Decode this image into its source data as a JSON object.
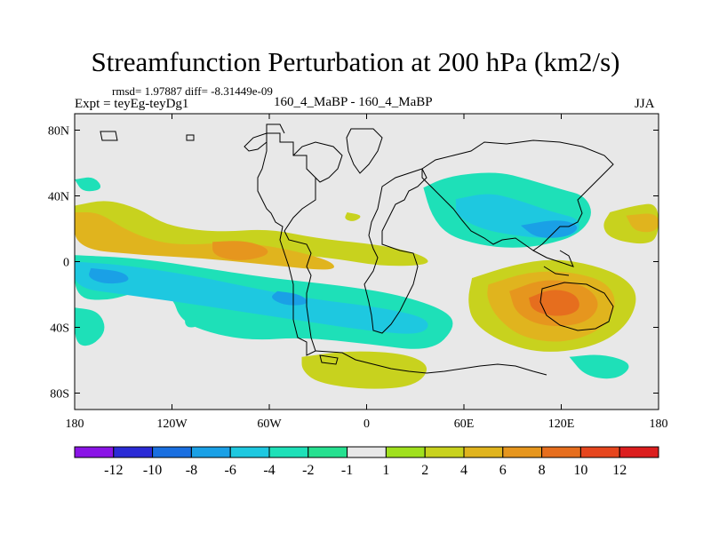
{
  "header": {
    "title": "Streamfunction Perturbation at 200 hPa (km2/s)",
    "stats": "rmsd= 1.97887 diff= -8.31449e-09",
    "experiment": "Expt = teyEg-teyDg1",
    "runs": "160_4_MaBP - 160_4_MaBP",
    "season": "JJA"
  },
  "chart_data": {
    "type": "heatmap",
    "title": "Streamfunction Perturbation at 200 hPa (km2/s)",
    "subtitle": "160_4_MaBP - 160_4_MaBP",
    "xlabel": "",
    "ylabel": "",
    "xlim": [
      -180,
      180
    ],
    "ylim": [
      -90,
      90
    ],
    "x_ticks": [
      {
        "value": -180,
        "label": "180"
      },
      {
        "value": -120,
        "label": "120W"
      },
      {
        "value": -60,
        "label": "60W"
      },
      {
        "value": 0,
        "label": "0"
      },
      {
        "value": 60,
        "label": "60E"
      },
      {
        "value": 120,
        "label": "120E"
      },
      {
        "value": 180,
        "label": "180"
      }
    ],
    "y_ticks": [
      {
        "value": 80,
        "label": "80N"
      },
      {
        "value": 40,
        "label": "40N"
      },
      {
        "value": 0,
        "label": "0"
      },
      {
        "value": -40,
        "label": "40S"
      },
      {
        "value": -80,
        "label": "80S"
      }
    ],
    "colorbar": {
      "levels": [
        "-12",
        "-10",
        "-8",
        "-6",
        "-4",
        "-2",
        "-1",
        "1",
        "2",
        "4",
        "6",
        "8",
        "10",
        "12"
      ],
      "colors": [
        "#8a14e6",
        "#2b2bd6",
        "#1a6fe0",
        "#1aa0e6",
        "#1ec8e0",
        "#1ee0b8",
        "#26e090",
        "#e8e8e8",
        "#a0e01e",
        "#c8d21e",
        "#e0b41e",
        "#e6961e",
        "#e66e1e",
        "#e6461e",
        "#dc1e1e"
      ]
    },
    "regions": [
      {
        "name": "n-atlantic-pacific-north",
        "level": "2",
        "points": [
          [
            -180,
            34
          ],
          [
            -160,
            38
          ],
          [
            -140,
            32
          ],
          [
            -127,
            24
          ],
          [
            -112,
            20
          ],
          [
            -90,
            18
          ],
          [
            -60,
            20
          ],
          [
            -30,
            14
          ],
          [
            10,
            10
          ],
          [
            35,
            4
          ],
          [
            40,
            -2
          ],
          [
            10,
            -3
          ],
          [
            -20,
            2
          ],
          [
            -60,
            6
          ],
          [
            -100,
            8
          ],
          [
            -140,
            12
          ],
          [
            -180,
            14
          ]
        ]
      },
      {
        "name": "n-tropical-positive",
        "level": "4",
        "points": [
          [
            -180,
            30
          ],
          [
            -165,
            30
          ],
          [
            -150,
            20
          ],
          [
            -130,
            12
          ],
          [
            -110,
            10
          ],
          [
            -80,
            12
          ],
          [
            -50,
            8
          ],
          [
            -20,
            0
          ],
          [
            -20,
            -6
          ],
          [
            -60,
            -2
          ],
          [
            -100,
            2
          ],
          [
            -140,
            4
          ],
          [
            -180,
            8
          ]
        ]
      },
      {
        "name": "atlantic-core",
        "level": "6",
        "points": [
          [
            -95,
            12
          ],
          [
            -75,
            13
          ],
          [
            -60,
            8
          ],
          [
            -62,
            3
          ],
          [
            -80,
            0
          ],
          [
            -95,
            4
          ]
        ]
      },
      {
        "name": "s-hemisphere-negative-band",
        "level": "-2",
        "points": [
          [
            -180,
            4
          ],
          [
            -140,
            2
          ],
          [
            -100,
            -4
          ],
          [
            -60,
            -10
          ],
          [
            -20,
            -14
          ],
          [
            20,
            -20
          ],
          [
            50,
            -30
          ],
          [
            55,
            -40
          ],
          [
            40,
            -55
          ],
          [
            0,
            -50
          ],
          [
            -40,
            -46
          ],
          [
            -70,
            -48
          ],
          [
            -95,
            -44
          ],
          [
            -115,
            -36
          ],
          [
            -120,
            -20
          ],
          [
            -140,
            -18
          ],
          [
            -160,
            -24
          ],
          [
            -180,
            -22
          ]
        ]
      },
      {
        "name": "s-hemisphere-band-inner",
        "level": "-4",
        "points": [
          [
            -180,
            0
          ],
          [
            -150,
            -2
          ],
          [
            -110,
            -8
          ],
          [
            -80,
            -14
          ],
          [
            -40,
            -22
          ],
          [
            10,
            -28
          ],
          [
            40,
            -35
          ],
          [
            35,
            -45
          ],
          [
            0,
            -42
          ],
          [
            -40,
            -36
          ],
          [
            -80,
            -30
          ],
          [
            -120,
            -24
          ],
          [
            -150,
            -20
          ],
          [
            -180,
            -16
          ]
        ]
      },
      {
        "name": "s-hemisphere-core-1",
        "level": "-6",
        "points": [
          [
            -170,
            -4
          ],
          [
            -150,
            -6
          ],
          [
            -145,
            -12
          ],
          [
            -160,
            -14
          ],
          [
            -172,
            -10
          ]
        ]
      },
      {
        "name": "s-hemisphere-core-2",
        "level": "-6",
        "points": [
          [
            -55,
            -18
          ],
          [
            -40,
            -20
          ],
          [
            -35,
            -26
          ],
          [
            -50,
            -27
          ],
          [
            -60,
            -22
          ]
        ]
      },
      {
        "name": "asia-negative",
        "level": "-2",
        "points": [
          [
            35,
            45
          ],
          [
            50,
            52
          ],
          [
            80,
            55
          ],
          [
            100,
            50
          ],
          [
            120,
            44
          ],
          [
            135,
            40
          ],
          [
            140,
            28
          ],
          [
            130,
            16
          ],
          [
            110,
            10
          ],
          [
            90,
            8
          ],
          [
            70,
            10
          ],
          [
            50,
            16
          ],
          [
            40,
            28
          ]
        ]
      },
      {
        "name": "asia-negative-inner",
        "level": "-4",
        "points": [
          [
            55,
            38
          ],
          [
            75,
            42
          ],
          [
            92,
            38
          ],
          [
            115,
            30
          ],
          [
            132,
            26
          ],
          [
            130,
            16
          ],
          [
            110,
            14
          ],
          [
            90,
            16
          ],
          [
            70,
            20
          ],
          [
            55,
            28
          ]
        ]
      },
      {
        "name": "asia-core",
        "level": "-6",
        "points": [
          [
            95,
            22
          ],
          [
            118,
            26
          ],
          [
            132,
            22
          ],
          [
            125,
            15
          ],
          [
            105,
            14
          ]
        ]
      },
      {
        "name": "indian-ocean-positive",
        "level": "2",
        "points": [
          [
            65,
            -10
          ],
          [
            90,
            -2
          ],
          [
            115,
            2
          ],
          [
            140,
            -2
          ],
          [
            160,
            -10
          ],
          [
            168,
            -22
          ],
          [
            160,
            -40
          ],
          [
            140,
            -52
          ],
          [
            110,
            -56
          ],
          [
            85,
            -50
          ],
          [
            66,
            -38
          ],
          [
            62,
            -24
          ]
        ]
      },
      {
        "name": "indian-ocean-positive-4",
        "level": "4",
        "points": [
          [
            75,
            -14
          ],
          [
            100,
            -6
          ],
          [
            125,
            -6
          ],
          [
            148,
            -12
          ],
          [
            155,
            -26
          ],
          [
            145,
            -42
          ],
          [
            120,
            -50
          ],
          [
            95,
            -46
          ],
          [
            80,
            -34
          ],
          [
            74,
            -22
          ]
        ]
      },
      {
        "name": "indian-ocean-positive-6",
        "level": "6",
        "points": [
          [
            88,
            -18
          ],
          [
            110,
            -10
          ],
          [
            135,
            -14
          ],
          [
            145,
            -26
          ],
          [
            135,
            -38
          ],
          [
            110,
            -40
          ],
          [
            92,
            -32
          ]
        ]
      },
      {
        "name": "indian-ocean-core",
        "level": "8",
        "points": [
          [
            100,
            -22
          ],
          [
            115,
            -16
          ],
          [
            130,
            -20
          ],
          [
            132,
            -30
          ],
          [
            118,
            -34
          ],
          [
            102,
            -30
          ]
        ]
      },
      {
        "name": "pacific-east-positive",
        "level": "2",
        "points": [
          [
            150,
            30
          ],
          [
            165,
            34
          ],
          [
            180,
            36
          ],
          [
            180,
            14
          ],
          [
            170,
            10
          ],
          [
            150,
            14
          ],
          [
            145,
            22
          ]
        ]
      },
      {
        "name": "pacific-east-positive-4",
        "level": "4",
        "points": [
          [
            160,
            28
          ],
          [
            180,
            30
          ],
          [
            180,
            18
          ],
          [
            165,
            18
          ]
        ]
      },
      {
        "name": "south-ocean-positive",
        "level": "2",
        "points": [
          [
            -40,
            -58
          ],
          [
            -10,
            -54
          ],
          [
            25,
            -56
          ],
          [
            40,
            -64
          ],
          [
            30,
            -76
          ],
          [
            0,
            -78
          ],
          [
            -30,
            -74
          ],
          [
            -40,
            -66
          ]
        ]
      },
      {
        "name": "south-pacific-negative",
        "level": "-2",
        "points": [
          [
            -180,
            -28
          ],
          [
            -165,
            -30
          ],
          [
            -160,
            -42
          ],
          [
            -170,
            -52
          ],
          [
            -180,
            -50
          ]
        ]
      },
      {
        "name": "southeast-pacific-negative",
        "level": "-2",
        "points": [
          [
            125,
            -58
          ],
          [
            145,
            -56
          ],
          [
            165,
            -62
          ],
          [
            155,
            -72
          ],
          [
            135,
            -70
          ]
        ]
      },
      {
        "name": "north-atlantic-cell",
        "level": "2",
        "points": [
          [
            -12,
            30
          ],
          [
            -2,
            28
          ],
          [
            -8,
            24
          ],
          [
            -14,
            26
          ]
        ]
      },
      {
        "name": "north-pacific-negative",
        "level": "-2",
        "points": [
          [
            -180,
            50
          ],
          [
            -168,
            52
          ],
          [
            -162,
            44
          ],
          [
            -175,
            42
          ]
        ]
      },
      {
        "name": "tiny-pacific-cell",
        "level": "-2",
        "points": [
          [
            -112,
            -32
          ],
          [
            -104,
            -32
          ],
          [
            -104,
            -40
          ],
          [
            -112,
            -40
          ]
        ]
      }
    ]
  }
}
